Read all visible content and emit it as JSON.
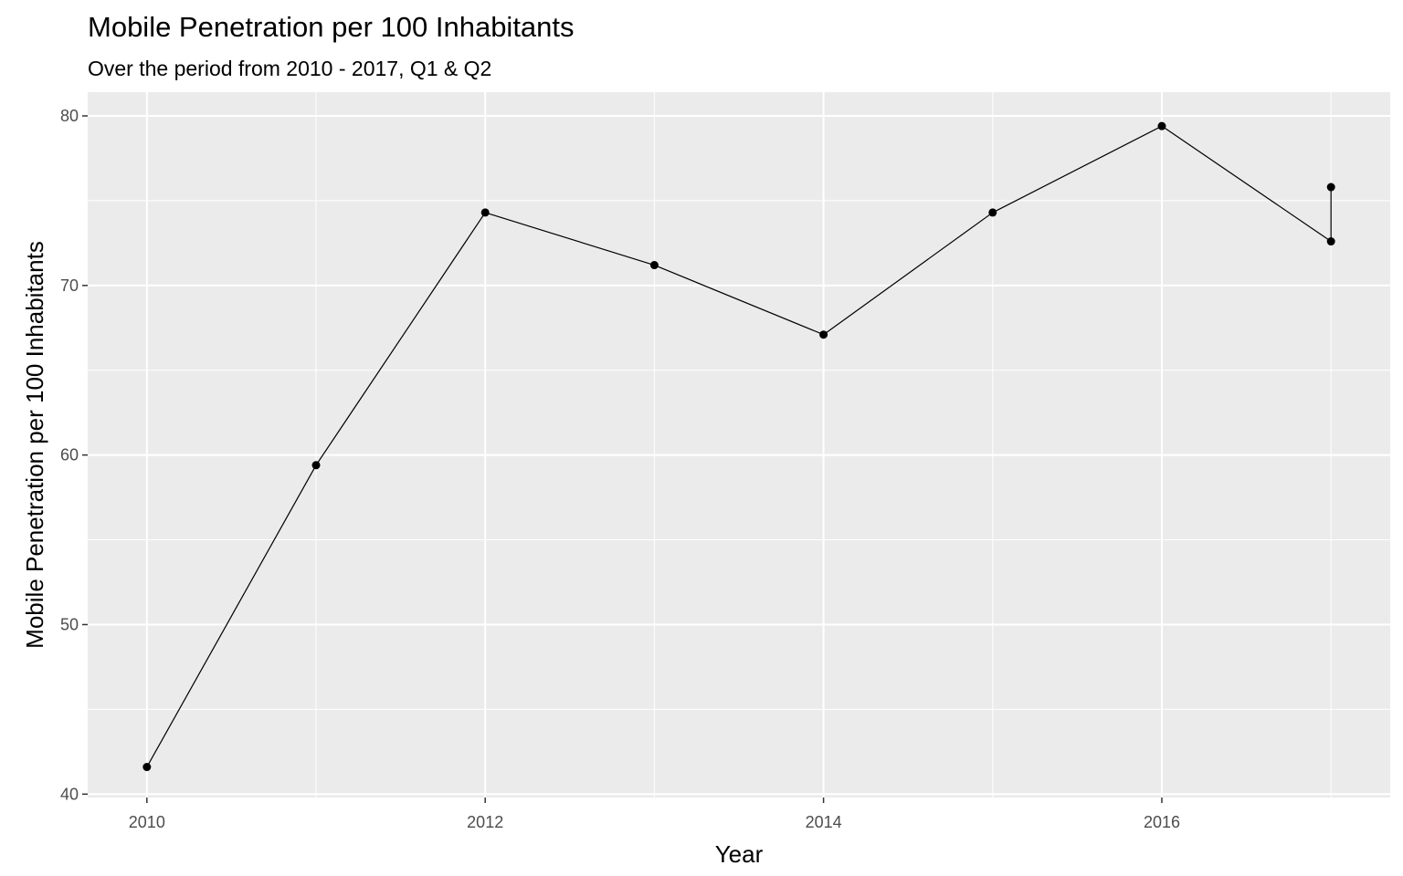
{
  "chart_data": {
    "type": "line",
    "title": "Mobile Penetration per 100 Inhabitants",
    "subtitle": "Over the period from 2010 - 2017, Q1 & Q2",
    "xlabel": "Year",
    "ylabel": "Mobile Penetration per 100 Inhabitants",
    "xlim": [
      2009.65,
      2017.35
    ],
    "ylim": [
      39.8,
      81.4
    ],
    "x_ticks": [
      2010,
      2012,
      2014,
      2016
    ],
    "y_ticks": [
      40,
      50,
      60,
      70,
      80
    ],
    "grid": true,
    "legend": "none",
    "colors": {
      "panel_background": "#ebebeb",
      "gridline": "#ffffff",
      "line": "#000000",
      "point": "#000000",
      "tick_text": "#4d4d4d",
      "tick_mark": "#333333"
    },
    "series": [
      {
        "x": [
          2010,
          2011,
          2012,
          2013,
          2014,
          2015,
          2016,
          2017,
          2017
        ],
        "y": [
          41.6,
          59.4,
          74.3,
          71.2,
          67.1,
          74.3,
          79.4,
          72.6,
          75.8
        ]
      }
    ]
  }
}
